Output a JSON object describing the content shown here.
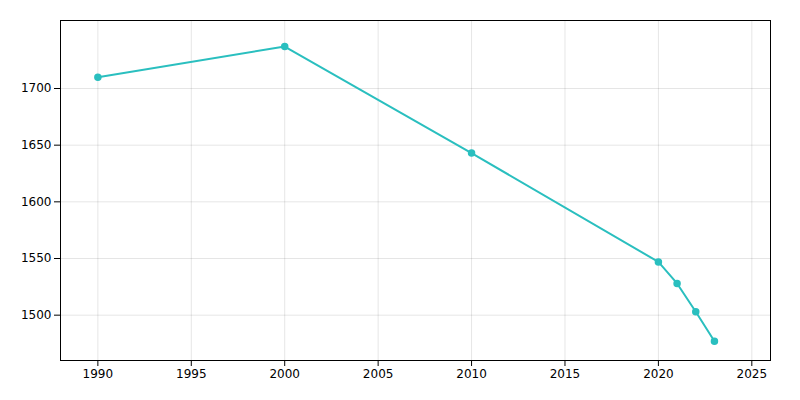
{
  "chart_data": {
    "type": "line",
    "x": [
      1990,
      2000,
      2010,
      2020,
      2021,
      2022,
      2023
    ],
    "values": [
      1710,
      1737,
      1643,
      1547,
      1528,
      1503,
      1477
    ],
    "color": "#2abfbf",
    "marker": "o",
    "xlim": [
      1988,
      2026
    ],
    "ylim": [
      1460,
      1760
    ],
    "xticks": [
      1990,
      1995,
      2000,
      2005,
      2010,
      2015,
      2020,
      2025
    ],
    "yticks": [
      1500,
      1550,
      1600,
      1650,
      1700
    ],
    "grid": true
  }
}
